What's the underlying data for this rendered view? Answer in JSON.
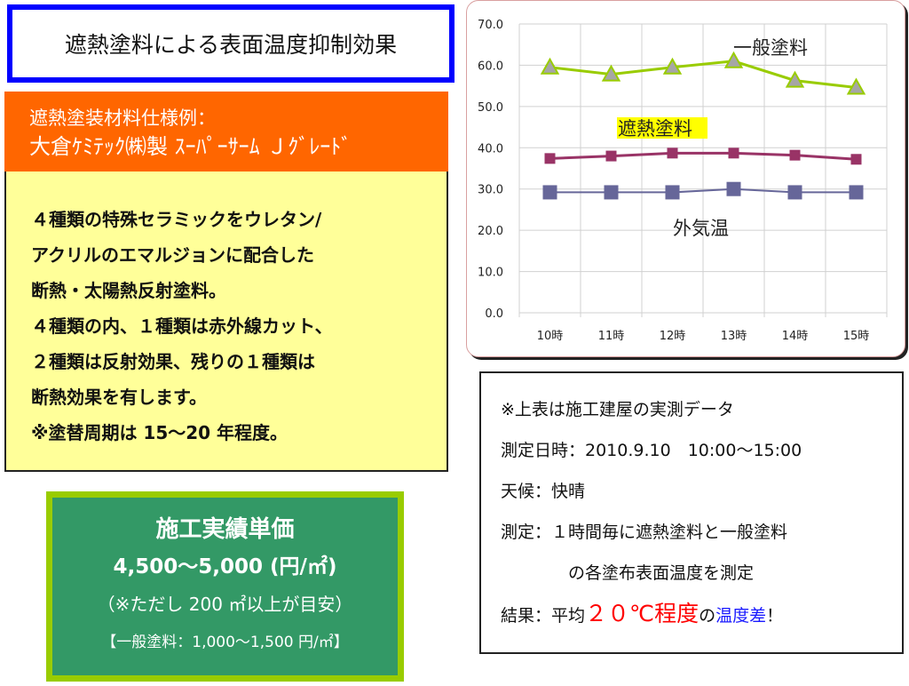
{
  "title": "遮熱塗料による表面温度抑制効果",
  "spec": {
    "line1": "遮熱塗装材料仕様例：",
    "line2": "大倉ｹﾐﾃｯｸ㈱製 ｽｰﾊﾟｰｻｰﾑ Ｊｸﾞﾚｰﾄﾞ",
    "body": [
      "４種類の特殊セラミックをウレタン/",
      "アクリルのエマルジョンに配合した",
      "断熱・太陽熱反射塗料。",
      "４種類の内、１種類は赤外線カット、",
      "２種類は反射効果、残りの１種類は",
      "断熱効果を有します。",
      "※塗替周期は 15～20 年程度。"
    ]
  },
  "price": {
    "title": "施工実績単価",
    "range": "4,500～5,000 (円/㎡)",
    "condition": "（※ただし 200 ㎡以上が目安）",
    "general": "【一般塗料：1,000～1,500 円/㎡】"
  },
  "note": {
    "line1": "※上表は施工建屋の実測データ",
    "line2": "測定日時：2010.9.10　10:00～15:00",
    "line3": "天候：快晴",
    "line4": "測定：１時間毎に遮熱塗料と一般塗料",
    "line5": "の各塗布表面温度を測定",
    "result_prefix": "結果：平均",
    "result_highlight": "２０℃程度",
    "result_no": "の",
    "result_blue": "温度差",
    "result_end": "！"
  },
  "chart_data": {
    "type": "line",
    "categories": [
      "10時",
      "11時",
      "12時",
      "13時",
      "14時",
      "15時"
    ],
    "ylim": [
      0,
      70
    ],
    "yticks": [
      "0.0",
      "10.0",
      "20.0",
      "30.0",
      "40.0",
      "50.0",
      "60.0",
      "70.0"
    ],
    "grid": true,
    "series": [
      {
        "name": "一般塗料",
        "values": [
          59.5,
          57.8,
          59.5,
          61.0,
          56.3,
          54.6
        ],
        "color": "#99cc00",
        "marker": "triangle",
        "marker_color": "#a6a6a6"
      },
      {
        "name": "遮熱塗料",
        "values": [
          37.4,
          38.0,
          38.7,
          38.7,
          38.2,
          37.2
        ],
        "color": "#993366",
        "marker": "square",
        "marker_color": "#993366",
        "label_bg": "#ffff00"
      },
      {
        "name": "外気温",
        "values": [
          29.2,
          29.2,
          29.2,
          30.0,
          29.2,
          29.2
        ],
        "color": "#666699",
        "marker": "square",
        "marker_color": "#666699"
      }
    ]
  }
}
